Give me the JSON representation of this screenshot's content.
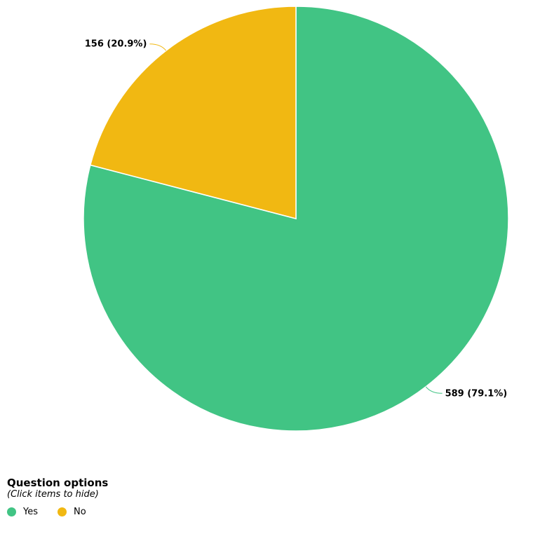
{
  "chart_data": {
    "type": "pie",
    "categories": [
      "Yes",
      "No"
    ],
    "values": [
      589,
      156
    ],
    "percentages": [
      "79.1%",
      "20.9%"
    ],
    "data_labels": [
      "589 (79.1%)",
      "156 (20.9%)"
    ],
    "colors": [
      "#41c484",
      "#f1b812"
    ],
    "start_angle": "top, clockwise",
    "legend_placement": "bottom-left"
  },
  "legend": {
    "title": "Question options",
    "subtitle": "(Click items to hide)",
    "items": [
      {
        "label": "Yes",
        "color": "#41c484"
      },
      {
        "label": "No",
        "color": "#f1b812"
      }
    ]
  }
}
